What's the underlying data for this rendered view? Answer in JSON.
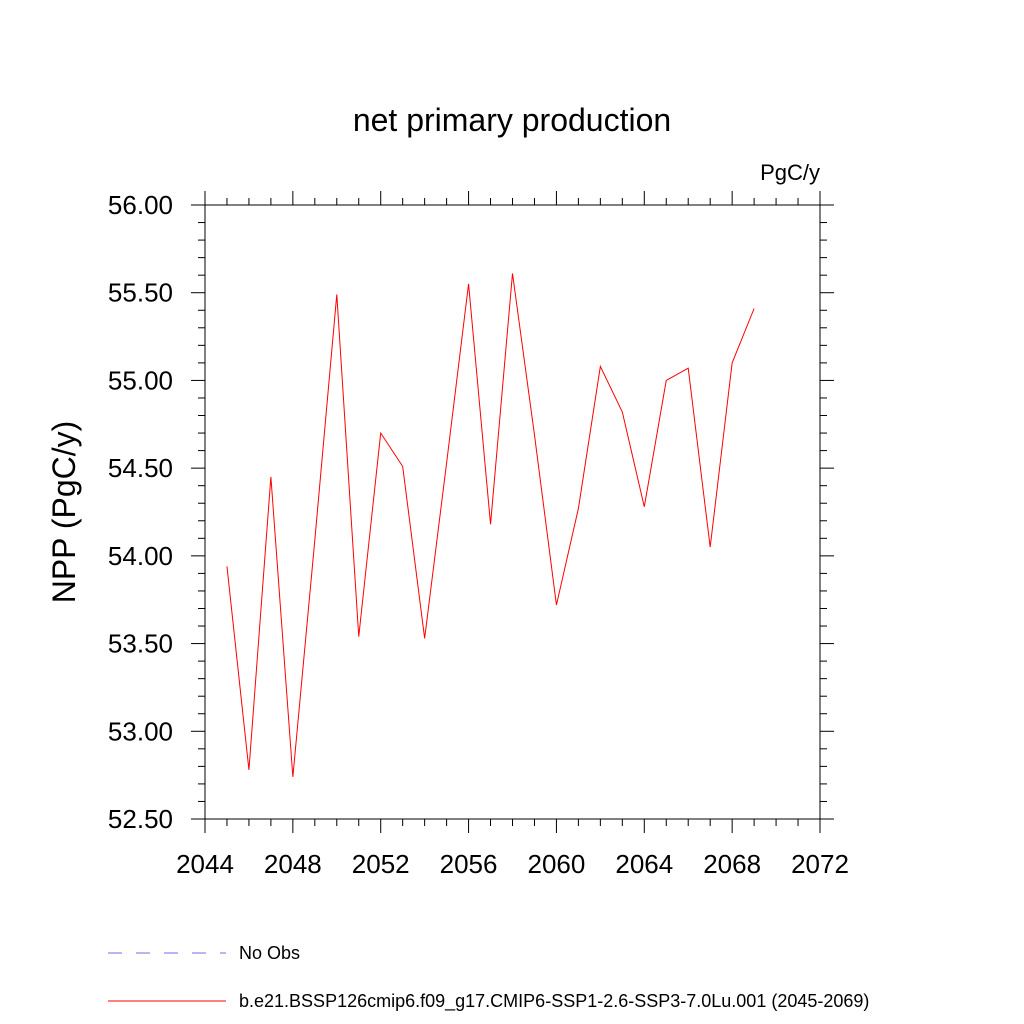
{
  "chart_data": {
    "type": "line",
    "title": "net primary production",
    "units": "PgC/y",
    "ylabel": "NPP  (PgC/y)",
    "xlabel": "",
    "xlim": [
      2044,
      2072
    ],
    "ylim": [
      52.5,
      56.0
    ],
    "x_ticks": [
      "2044",
      "2048",
      "2052",
      "2056",
      "2060",
      "2064",
      "2068",
      "2072"
    ],
    "y_ticks": [
      "52.50",
      "53.00",
      "53.50",
      "54.00",
      "54.50",
      "55.00",
      "55.50",
      "56.00"
    ],
    "grid": false,
    "series": [
      {
        "name": "b.e21.BSSP126cmip6.f09_g17.CMIP6-SSP1-2.6-SSP3-7.0Lu.001 (2045-2069)",
        "color": "#ff0000",
        "style": "solid",
        "x": [
          2045,
          2046,
          2047,
          2048,
          2049,
          2050,
          2051,
          2052,
          2053,
          2054,
          2055,
          2056,
          2057,
          2058,
          2059,
          2060,
          2061,
          2062,
          2063,
          2064,
          2065,
          2066,
          2067,
          2068,
          2069
        ],
        "values": [
          53.94,
          52.78,
          54.45,
          52.74,
          54.09,
          55.49,
          53.54,
          54.7,
          54.51,
          53.53,
          54.53,
          55.55,
          54.18,
          55.61,
          54.69,
          53.72,
          54.27,
          55.08,
          54.82,
          54.28,
          55.0,
          55.07,
          54.05,
          55.1,
          55.41
        ]
      }
    ],
    "legend": [
      {
        "label": "No Obs",
        "color": "#7b68ee",
        "style": "dashed"
      },
      {
        "label": "b.e21.BSSP126cmip6.f09_g17.CMIP6-SSP1-2.6-SSP3-7.0Lu.001 (2045-2069)",
        "color": "#ff0000",
        "style": "solid"
      }
    ],
    "legend_position": "bottom"
  }
}
